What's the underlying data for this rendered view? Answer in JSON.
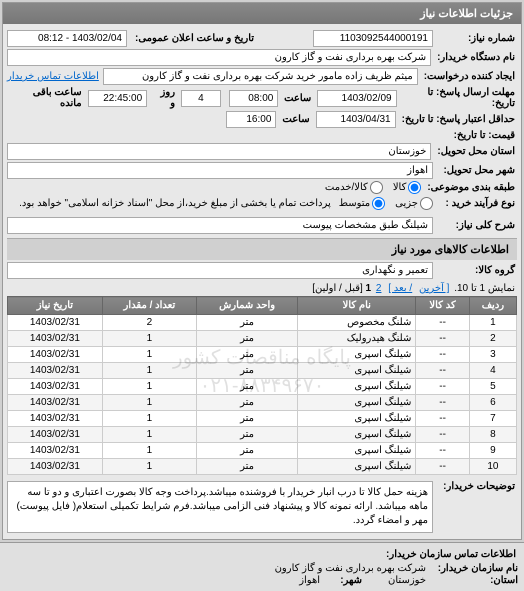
{
  "panel_title": "جزئیات اطلاعات نیاز",
  "need_no_label": "شماره نیاز:",
  "need_no": "1103092544000191",
  "pub_date_label": "تاریخ و ساعت اعلان عمومی:",
  "pub_date": "1403/02/04 - 08:12",
  "buyer_org_label": "نام دستگاه خریدار:",
  "buyer_org": "شرکت بهره برداری نفت و گاز کارون",
  "requester_label": "ایجاد کننده درخواست:",
  "requester": "میثم ظریف زاده مامور خرید شرکت بهره برداری نفت و گاز کارون",
  "contact_link": "اطلاعات تماس خریدار",
  "deadline_send_label": "مهلت ارسال پاسخ: تا تاریخ:",
  "deadline_send_date": "1403/02/09",
  "time_label": "ساعت",
  "deadline_send_time": "08:00",
  "days_label": "روز و",
  "remain_days": "4",
  "remain_time": "22:45:00",
  "remain_label": "ساعت باقی مانده",
  "valid_label": "حداقل اعتبار پاسخ: تا تاریخ:",
  "valid_date": "1403/04/31",
  "valid_time": "16:00",
  "price_until_label": "قیمت: تا تاریخ:",
  "delivery_state_label": "استان محل تحویل:",
  "delivery_state": "خوزستان",
  "delivery_city_label": "شهر محل تحویل:",
  "delivery_city": "اهواز",
  "pkg_label": "طبقه بندی موضوعی:",
  "pkg_opts": {
    "goods": "کالا",
    "goods_service": "کالا/خدمت"
  },
  "process_label": "نوع فرآیند خرید :",
  "process_opts": {
    "small": "جزیی",
    "medium": "متوسط"
  },
  "process_note": "پرداخت تمام یا بخشی از مبلغ خرید،از محل \"اسناد خزانه اسلامی\" خواهد بود.",
  "need_title_label": "شرح کلی نیاز:",
  "need_title": "شیلنگ طبق مشخصات پیوست",
  "goods_header": "اطلاعات کالاهای مورد نیاز",
  "goods_group_label": "گروه کالا:",
  "goods_group": "تعمیر و نگهداری",
  "pager_prefix": "نمایش 1 تا 10.",
  "pager_last": "[ آخرین",
  "pager_next": "/ بعد ]",
  "pager_p1": "1",
  "pager_p2": "2",
  "pager_suffix": "[قبل / اولین]",
  "cols": {
    "row": "ردیف",
    "code": "کد کالا",
    "name": "نام کالا",
    "unit": "واحد شمارش",
    "qty": "تعداد / مقدار",
    "date": "تاریخ نیاز"
  },
  "rows": [
    {
      "r": "1",
      "code": "--",
      "name": "شلنگ مخصوص",
      "unit": "متر",
      "qty": "2",
      "date": "1403/02/31"
    },
    {
      "r": "2",
      "code": "--",
      "name": "شلنگ هیدرولیک",
      "unit": "متر",
      "qty": "1",
      "date": "1403/02/31"
    },
    {
      "r": "3",
      "code": "--",
      "name": "شیلنگ اسپری",
      "unit": "متر",
      "qty": "1",
      "date": "1403/02/31"
    },
    {
      "r": "4",
      "code": "--",
      "name": "شیلنگ اسپری",
      "unit": "متر",
      "qty": "1",
      "date": "1403/02/31"
    },
    {
      "r": "5",
      "code": "--",
      "name": "شیلنگ اسپری",
      "unit": "متر",
      "qty": "1",
      "date": "1403/02/31"
    },
    {
      "r": "6",
      "code": "--",
      "name": "شیلنگ اسپری",
      "unit": "متر",
      "qty": "1",
      "date": "1403/02/31"
    },
    {
      "r": "7",
      "code": "--",
      "name": "شیلنگ اسپری",
      "unit": "متر",
      "qty": "1",
      "date": "1403/02/31"
    },
    {
      "r": "8",
      "code": "--",
      "name": "شیلنگ اسپری",
      "unit": "متر",
      "qty": "1",
      "date": "1403/02/31"
    },
    {
      "r": "9",
      "code": "--",
      "name": "شیلنگ اسپری",
      "unit": "متر",
      "qty": "1",
      "date": "1403/02/31"
    },
    {
      "r": "10",
      "code": "--",
      "name": "شیلنگ اسپری",
      "unit": "متر",
      "qty": "1",
      "date": "1403/02/31"
    }
  ],
  "buyer_desc_label": "توضیحات خریدار:",
  "buyer_desc": "هزینه حمل کالا تا درب انبار خریدار با فروشنده میباشد.پرداخت وجه کالا بصورت اعتباری و دو تا سه ماهه میباشد. ارائه نمونه کالا و پیشنهاد فنی الزامی میباشد.فرم شرایط تکمیلی استعلام( فایل پیوست) مهر و امضاء گردد.",
  "footer_header": "اطلاعات تماس سازمان خریدار:",
  "footer_org_label": "نام سازمان خریدار:",
  "footer_org": "شرکت بهره برداری نفت و گاز کارون",
  "footer_state_label": "استان:",
  "footer_state": "خوزستان",
  "footer_city_label": "شهر:",
  "footer_city": "اهواز",
  "watermark_l1": "پایگاه مناقصات کشور",
  "watermark_l2": "۰۲۱-۸۸۳۴۹۶۷۰"
}
